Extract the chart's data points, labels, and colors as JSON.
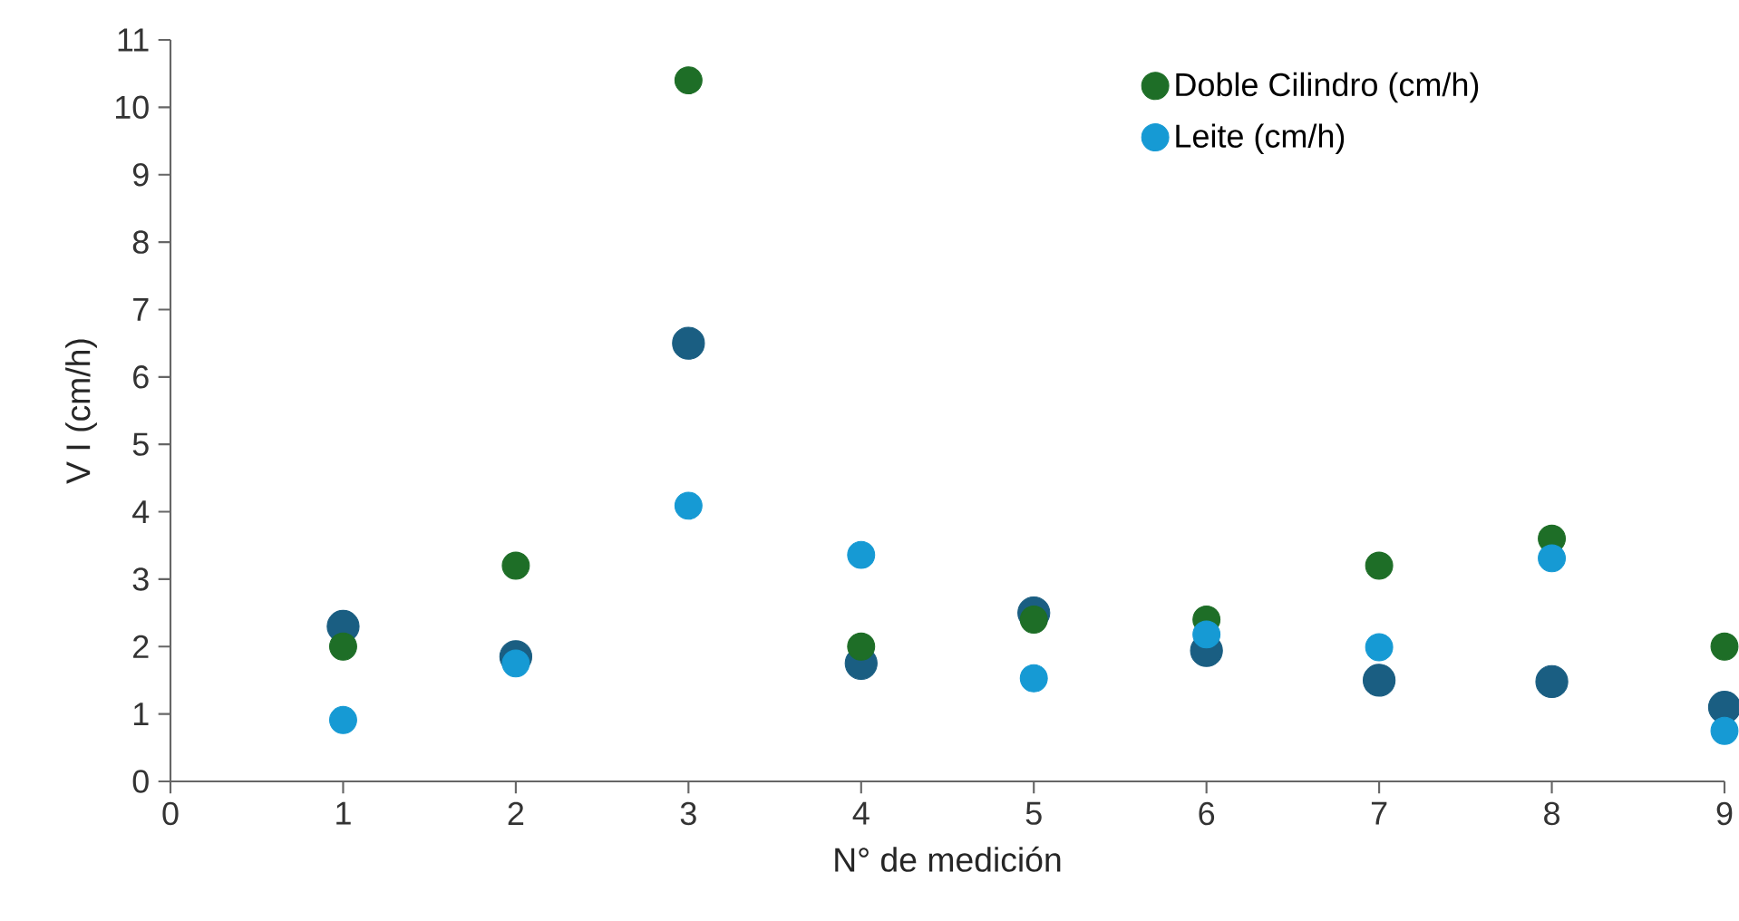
{
  "chart_data": {
    "type": "scatter",
    "xlabel": "N° de medición",
    "ylabel": "V I (cm/h)",
    "x": [
      1,
      2,
      3,
      4,
      5,
      6,
      7,
      8,
      9
    ],
    "series": [
      {
        "color": "#1a5e82",
        "values": [
          2.3,
          1.85,
          6.5,
          1.75,
          2.5,
          1.94,
          1.5,
          1.48,
          1.1
        ]
      },
      {
        "name": "Doble Cilindro (cm/h)",
        "color": "#1e6e27",
        "values": [
          2.0,
          3.2,
          10.4,
          2.0,
          2.4,
          2.4,
          3.2,
          3.6,
          2.0
        ]
      },
      {
        "name": "Leite (cm/h)",
        "color": "#169ad4",
        "values": [
          0.91,
          1.75,
          4.09,
          3.36,
          1.53,
          2.18,
          1.99,
          3.31,
          0.75
        ]
      }
    ],
    "xlim": [
      0,
      9
    ],
    "ylim": [
      0,
      11
    ],
    "xticks": [
      0,
      1,
      2,
      3,
      4,
      5,
      6,
      7,
      8,
      9
    ],
    "yticks": [
      0,
      1,
      2,
      3,
      4,
      5,
      6,
      7,
      8,
      9,
      10,
      11
    ],
    "legend": "top right",
    "marker": "circle"
  }
}
